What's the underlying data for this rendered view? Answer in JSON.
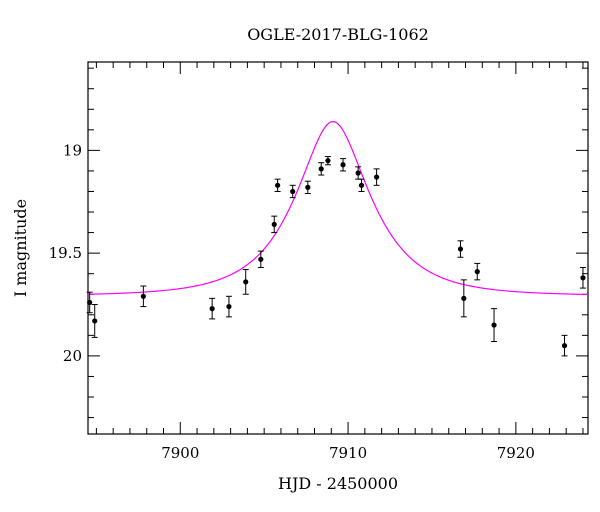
{
  "chart_data": {
    "type": "scatter",
    "title": "OGLE-2017-BLG-1062",
    "xlabel": "HJD - 2450000",
    "ylabel": "I magnitude",
    "xlim": [
      7894.5,
      7924.3
    ],
    "ylim": [
      20.38,
      18.57
    ],
    "y_inverted": true,
    "x_ticks": [
      7900,
      7910,
      7920
    ],
    "x_tick_labels": [
      "7900",
      "7910",
      "7920"
    ],
    "y_ticks": [
      19,
      19.5,
      20
    ],
    "y_tick_labels": [
      "19",
      "19.5",
      "20"
    ],
    "grid": false,
    "colors": {
      "points": "#000000",
      "model": "#ff00ff",
      "axes": "#000000"
    },
    "series": [
      {
        "type": "scatter_errorbar",
        "x": [
          7894.6,
          7894.9,
          7897.8,
          7901.9,
          7902.9,
          7903.9,
          7904.8,
          7905.6,
          7905.8,
          7906.7,
          7907.6,
          7908.4,
          7908.8,
          7909.7,
          7910.6,
          7910.8,
          7911.7,
          7916.7,
          7916.9,
          7917.7,
          7918.7,
          7922.9,
          7924.0
        ],
        "y": [
          19.74,
          19.83,
          19.71,
          19.77,
          19.76,
          19.64,
          19.53,
          19.36,
          19.17,
          19.2,
          19.18,
          19.09,
          19.05,
          19.07,
          19.11,
          19.17,
          19.13,
          19.48,
          19.72,
          19.59,
          19.85,
          19.95,
          19.62
        ],
        "yerr": [
          0.05,
          0.08,
          0.05,
          0.05,
          0.05,
          0.06,
          0.04,
          0.04,
          0.03,
          0.03,
          0.03,
          0.03,
          0.02,
          0.03,
          0.03,
          0.03,
          0.04,
          0.04,
          0.09,
          0.04,
          0.08,
          0.05,
          0.05
        ]
      },
      {
        "type": "model_curve",
        "t0": 7909.1,
        "u0": 0.5,
        "tE": 3.8,
        "baseline": 19.7
      }
    ]
  }
}
